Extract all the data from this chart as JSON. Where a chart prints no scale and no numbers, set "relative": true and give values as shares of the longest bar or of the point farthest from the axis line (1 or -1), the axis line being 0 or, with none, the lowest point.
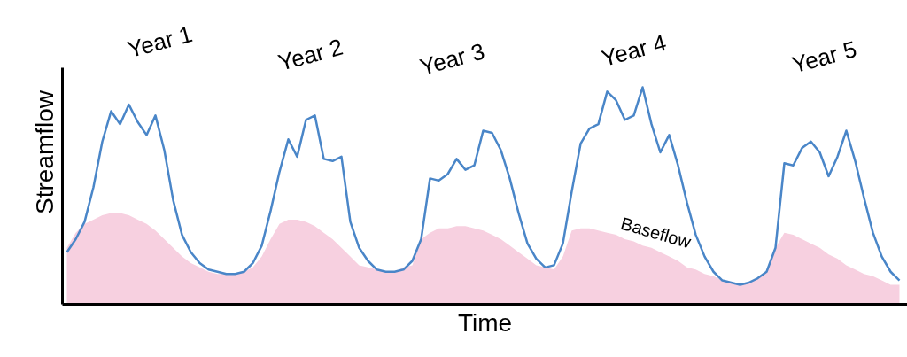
{
  "chart_data": {
    "type": "line",
    "relative": true,
    "xlabel": "Time",
    "ylabel": "Streamflow",
    "annotations": [
      "Year 1",
      "Year 2",
      "Year 3",
      "Year 4",
      "Year 5",
      "Baseflow"
    ],
    "categories": [
      null,
      null,
      null,
      null,
      null,
      null,
      null,
      null,
      null,
      null,
      null,
      null,
      null,
      null,
      null,
      null,
      null,
      null,
      null,
      null,
      null,
      null,
      null,
      null,
      null,
      null,
      null,
      null,
      null,
      null,
      null,
      null,
      null,
      null,
      null,
      null,
      null,
      null,
      null,
      null,
      null,
      null,
      null,
      null,
      null,
      null,
      null,
      null,
      null,
      null,
      null,
      null,
      null,
      null,
      null,
      null,
      null,
      null,
      null,
      null,
      null,
      null,
      null,
      null,
      null,
      null,
      null,
      null,
      null,
      null,
      null,
      null,
      null,
      null,
      null,
      null,
      null,
      null,
      null,
      null,
      null,
      null,
      null,
      null,
      null,
      null,
      null,
      null,
      null,
      null,
      null,
      null,
      null,
      null,
      null
    ],
    "series": [
      {
        "type": "area",
        "color": "#f7d0e0",
        "values": [
          0.26,
          0.33,
          0.37,
          0.39,
          0.41,
          0.42,
          0.42,
          0.41,
          0.39,
          0.37,
          0.34,
          0.3,
          0.26,
          0.22,
          0.19,
          0.17,
          0.15,
          0.14,
          0.14,
          0.14,
          0.15,
          0.17,
          0.22,
          0.3,
          0.37,
          0.39,
          0.39,
          0.38,
          0.36,
          0.33,
          0.3,
          0.26,
          0.22,
          0.18,
          0.17,
          0.16,
          0.15,
          0.15,
          0.17,
          0.18,
          0.3,
          0.33,
          0.35,
          0.35,
          0.36,
          0.36,
          0.35,
          0.34,
          0.32,
          0.3,
          0.27,
          0.24,
          0.21,
          0.18,
          0.17,
          0.16,
          0.22,
          0.34,
          0.35,
          0.35,
          0.34,
          0.33,
          0.32,
          0.3,
          0.29,
          0.27,
          0.26,
          0.24,
          0.22,
          0.2,
          0.17,
          0.16,
          0.14,
          0.13,
          0.11,
          0.1,
          0.09,
          0.1,
          0.12,
          0.15,
          0.26,
          0.33,
          0.32,
          0.3,
          0.28,
          0.26,
          0.23,
          0.21,
          0.18,
          0.16,
          0.14,
          0.13,
          0.11,
          0.09,
          0.09
        ]
      },
      {
        "color": "#4a86c8",
        "values": [
          0.24,
          0.3,
          0.38,
          0.54,
          0.75,
          0.89,
          0.83,
          0.92,
          0.84,
          0.78,
          0.87,
          0.71,
          0.48,
          0.32,
          0.24,
          0.19,
          0.16,
          0.15,
          0.14,
          0.14,
          0.15,
          0.19,
          0.27,
          0.43,
          0.61,
          0.76,
          0.68,
          0.85,
          0.87,
          0.67,
          0.66,
          0.68,
          0.38,
          0.26,
          0.2,
          0.16,
          0.15,
          0.15,
          0.16,
          0.2,
          0.3,
          0.58,
          0.57,
          0.6,
          0.67,
          0.62,
          0.64,
          0.8,
          0.79,
          0.71,
          0.58,
          0.42,
          0.28,
          0.21,
          0.17,
          0.18,
          0.28,
          0.52,
          0.74,
          0.81,
          0.83,
          0.98,
          0.94,
          0.85,
          0.87,
          1.0,
          0.83,
          0.7,
          0.78,
          0.64,
          0.47,
          0.32,
          0.22,
          0.15,
          0.11,
          0.1,
          0.09,
          0.1,
          0.12,
          0.15,
          0.26,
          0.65,
          0.64,
          0.72,
          0.75,
          0.7,
          0.59,
          0.68,
          0.8,
          0.66,
          0.49,
          0.33,
          0.22,
          0.15,
          0.11
        ]
      }
    ]
  }
}
